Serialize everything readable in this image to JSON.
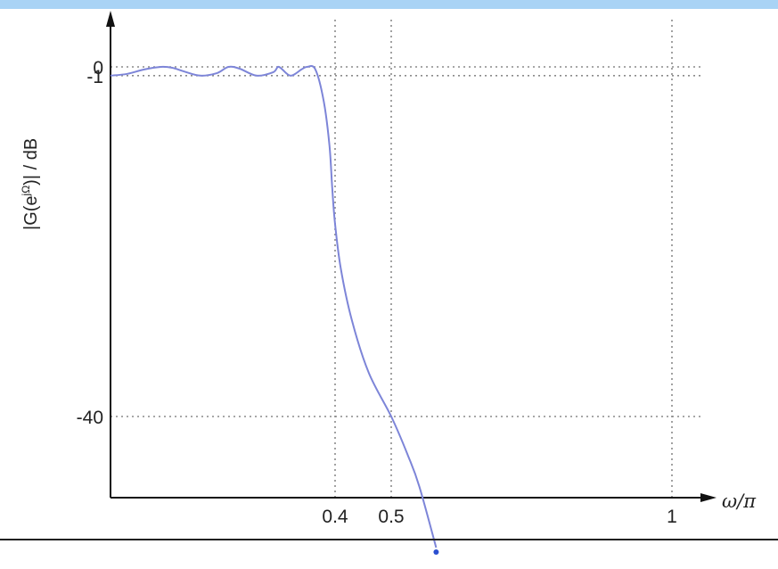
{
  "colors": {
    "band": "#a9d3f5",
    "axis": "#111111",
    "grid": "#8a8a8a",
    "curve": "#7d85d8",
    "marker": "#2b4fd0"
  },
  "chart_data": {
    "type": "line",
    "title": "",
    "xlabel": "ω/π",
    "ylabel": "|G(e^jΩ)| / dB",
    "ylabel_main": "|G(e",
    "ylabel_sup": "jΩ",
    "ylabel_tail": ")| / dB",
    "xlim": [
      0.0,
      1.1
    ],
    "ylim": [
      -50,
      6
    ],
    "grid": true,
    "x_ticks": [
      {
        "value": 0.4,
        "label": "0.4"
      },
      {
        "value": 0.5,
        "label": "0.5"
      },
      {
        "value": 1.0,
        "label": "1"
      }
    ],
    "y_ticks": [
      {
        "value": 0,
        "label": "0"
      },
      {
        "value": -1,
        "label": "-1"
      },
      {
        "value": -40,
        "label": "-40"
      }
    ],
    "series": [
      {
        "x": [
          0.0,
          0.03,
          0.06,
          0.09,
          0.11,
          0.13,
          0.16,
          0.19,
          0.21,
          0.23,
          0.26,
          0.29,
          0.3,
          0.32,
          0.34,
          0.35,
          0.365,
          0.38,
          0.39,
          0.395,
          0.4,
          0.41,
          0.43,
          0.46,
          0.5,
          0.53,
          0.55,
          0.58
        ],
        "y": [
          -1,
          -0.8,
          -0.3,
          0.0,
          -0.1,
          -0.5,
          -1.0,
          -0.7,
          0.0,
          -0.2,
          -1.0,
          -0.6,
          0.0,
          -1.0,
          -0.3,
          0.0,
          -0.3,
          -4,
          -9,
          -14,
          -18,
          -23,
          -29,
          -35,
          -40,
          -44.5,
          -48,
          -55
        ]
      }
    ],
    "end_marker": {
      "x": 0.58,
      "y": -55
    }
  }
}
